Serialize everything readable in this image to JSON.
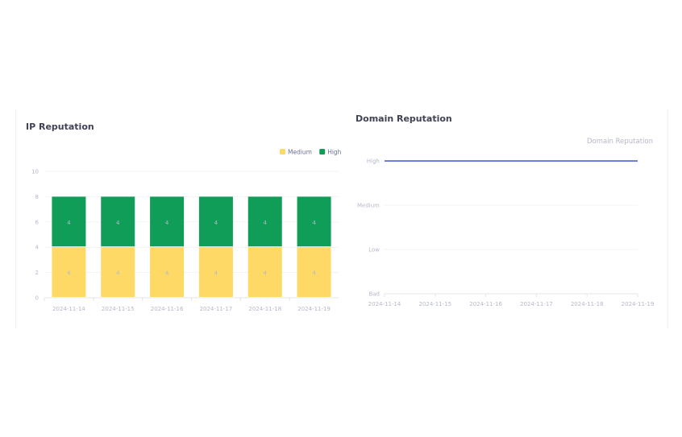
{
  "chart_data": [
    {
      "type": "bar",
      "stacked": true,
      "title": "IP Reputation",
      "categories": [
        "2024-11-14",
        "2024-11-15",
        "2024-11-16",
        "2024-11-17",
        "2024-11-18",
        "2024-11-19"
      ],
      "series": [
        {
          "name": "Medium",
          "color": "#ffd966",
          "values": [
            4,
            4,
            4,
            4,
            4,
            4
          ]
        },
        {
          "name": "High",
          "color": "#0f9d58",
          "values": [
            4,
            4,
            4,
            4,
            4,
            4
          ]
        }
      ],
      "ylim": [
        0,
        10
      ],
      "yticks": [
        0,
        2,
        4,
        6,
        8,
        10
      ],
      "legend": "top-right",
      "data_labels": true,
      "grid": true
    },
    {
      "type": "line",
      "title": "Domain Reputation",
      "legend_label": "Domain Reputation",
      "categories": [
        "2024-11-14",
        "2024-11-15",
        "2024-11-16",
        "2024-11-17",
        "2024-11-18",
        "2024-11-19"
      ],
      "ycategories": [
        "Bad",
        "Low",
        "Medium",
        "High"
      ],
      "series": [
        {
          "name": "Domain Reputation",
          "color": "#6a7fe0",
          "values": [
            "High",
            "High",
            "High",
            "High",
            "High",
            "High"
          ]
        }
      ],
      "grid": true
    }
  ]
}
